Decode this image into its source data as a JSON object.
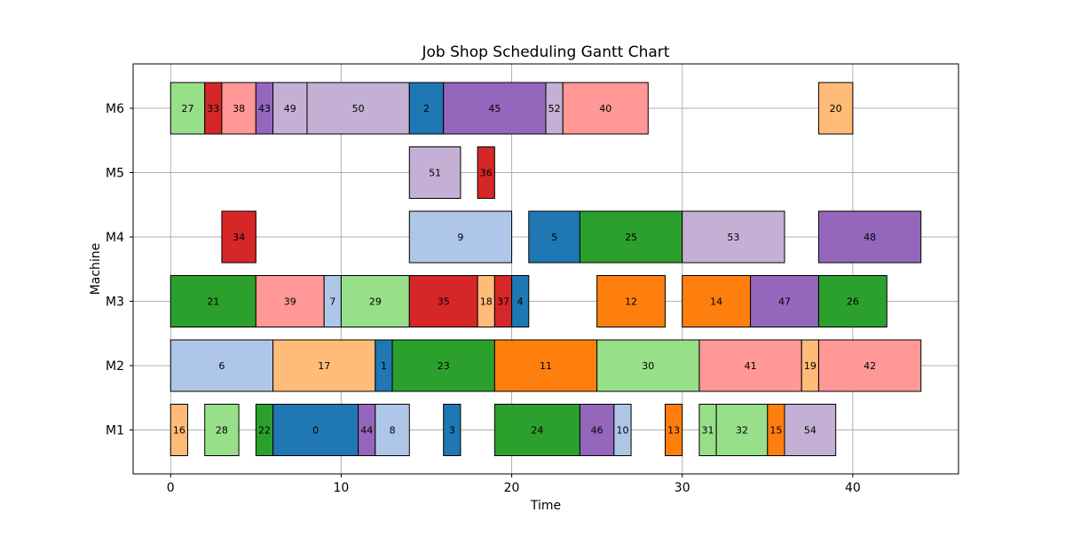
{
  "chart_data": {
    "type": "gantt",
    "title": "Job Shop Scheduling Gantt Chart",
    "xlabel": "Time",
    "ylabel": "Machine",
    "xlim": [
      -2.2,
      46.2
    ],
    "xticks": [
      0,
      10,
      20,
      30,
      40
    ],
    "machines": [
      "M1",
      "M2",
      "M3",
      "M4",
      "M5",
      "M6"
    ],
    "grid": true,
    "palette": {
      "blue": "#1f77b4",
      "light-blue": "#aec7e8",
      "orange": "#ff7f0e",
      "light-orange": "#ffbb78",
      "green": "#2ca02c",
      "light-green": "#98df8a",
      "red": "#d62728",
      "light-red": "#ff9896",
      "purple": "#9467bd",
      "light-purple": "#c5b0d5"
    },
    "tasks": [
      {
        "machine": "M1",
        "job": "16",
        "start": 0,
        "end": 1,
        "color": "#ffbb78"
      },
      {
        "machine": "M1",
        "job": "28",
        "start": 2,
        "end": 4,
        "color": "#98df8a"
      },
      {
        "machine": "M1",
        "job": "22",
        "start": 5,
        "end": 6,
        "color": "#2ca02c"
      },
      {
        "machine": "M1",
        "job": "0",
        "start": 6,
        "end": 11,
        "color": "#1f77b4"
      },
      {
        "machine": "M1",
        "job": "44",
        "start": 11,
        "end": 12,
        "color": "#9467bd"
      },
      {
        "machine": "M1",
        "job": "8",
        "start": 12,
        "end": 14,
        "color": "#aec7e8"
      },
      {
        "machine": "M1",
        "job": "3",
        "start": 16,
        "end": 17,
        "color": "#1f77b4"
      },
      {
        "machine": "M1",
        "job": "24",
        "start": 19,
        "end": 24,
        "color": "#2ca02c"
      },
      {
        "machine": "M1",
        "job": "46",
        "start": 24,
        "end": 26,
        "color": "#9467bd"
      },
      {
        "machine": "M1",
        "job": "10",
        "start": 26,
        "end": 27,
        "color": "#aec7e8"
      },
      {
        "machine": "M1",
        "job": "13",
        "start": 29,
        "end": 30,
        "color": "#ff7f0e"
      },
      {
        "machine": "M1",
        "job": "31",
        "start": 31,
        "end": 32,
        "color": "#98df8a"
      },
      {
        "machine": "M1",
        "job": "32",
        "start": 32,
        "end": 35,
        "color": "#98df8a"
      },
      {
        "machine": "M1",
        "job": "15",
        "start": 35,
        "end": 36,
        "color": "#ff7f0e"
      },
      {
        "machine": "M1",
        "job": "54",
        "start": 36,
        "end": 39,
        "color": "#c5b0d5"
      },
      {
        "machine": "M2",
        "job": "6",
        "start": 0,
        "end": 6,
        "color": "#aec7e8"
      },
      {
        "machine": "M2",
        "job": "17",
        "start": 6,
        "end": 12,
        "color": "#ffbb78"
      },
      {
        "machine": "M2",
        "job": "1",
        "start": 12,
        "end": 13,
        "color": "#1f77b4"
      },
      {
        "machine": "M2",
        "job": "23",
        "start": 13,
        "end": 19,
        "color": "#2ca02c"
      },
      {
        "machine": "M2",
        "job": "11",
        "start": 19,
        "end": 25,
        "color": "#ff7f0e"
      },
      {
        "machine": "M2",
        "job": "30",
        "start": 25,
        "end": 31,
        "color": "#98df8a"
      },
      {
        "machine": "M2",
        "job": "41",
        "start": 31,
        "end": 37,
        "color": "#ff9896"
      },
      {
        "machine": "M2",
        "job": "19",
        "start": 37,
        "end": 38,
        "color": "#ffbb78"
      },
      {
        "machine": "M2",
        "job": "42",
        "start": 38,
        "end": 44,
        "color": "#ff9896"
      },
      {
        "machine": "M3",
        "job": "21",
        "start": 0,
        "end": 5,
        "color": "#2ca02c"
      },
      {
        "machine": "M3",
        "job": "39",
        "start": 5,
        "end": 9,
        "color": "#ff9896"
      },
      {
        "machine": "M3",
        "job": "7",
        "start": 9,
        "end": 10,
        "color": "#aec7e8"
      },
      {
        "machine": "M3",
        "job": "29",
        "start": 10,
        "end": 14,
        "color": "#98df8a"
      },
      {
        "machine": "M3",
        "job": "35",
        "start": 14,
        "end": 18,
        "color": "#d62728"
      },
      {
        "machine": "M3",
        "job": "18",
        "start": 18,
        "end": 19,
        "color": "#ffbb78"
      },
      {
        "machine": "M3",
        "job": "37",
        "start": 19,
        "end": 20,
        "color": "#d62728"
      },
      {
        "machine": "M3",
        "job": "4",
        "start": 20,
        "end": 21,
        "color": "#1f77b4"
      },
      {
        "machine": "M3",
        "job": "12",
        "start": 25,
        "end": 29,
        "color": "#ff7f0e"
      },
      {
        "machine": "M3",
        "job": "14",
        "start": 30,
        "end": 34,
        "color": "#ff7f0e"
      },
      {
        "machine": "M3",
        "job": "47",
        "start": 34,
        "end": 38,
        "color": "#9467bd"
      },
      {
        "machine": "M3",
        "job": "26",
        "start": 38,
        "end": 42,
        "color": "#2ca02c"
      },
      {
        "machine": "M4",
        "job": "34",
        "start": 3,
        "end": 5,
        "color": "#d62728"
      },
      {
        "machine": "M4",
        "job": "9",
        "start": 14,
        "end": 20,
        "color": "#aec7e8"
      },
      {
        "machine": "M4",
        "job": "5",
        "start": 21,
        "end": 24,
        "color": "#1f77b4"
      },
      {
        "machine": "M4",
        "job": "25",
        "start": 24,
        "end": 30,
        "color": "#2ca02c"
      },
      {
        "machine": "M4",
        "job": "53",
        "start": 30,
        "end": 36,
        "color": "#c5b0d5"
      },
      {
        "machine": "M4",
        "job": "48",
        "start": 38,
        "end": 44,
        "color": "#9467bd"
      },
      {
        "machine": "M5",
        "job": "51",
        "start": 14,
        "end": 17,
        "color": "#c5b0d5"
      },
      {
        "machine": "M5",
        "job": "36",
        "start": 18,
        "end": 19,
        "color": "#d62728"
      },
      {
        "machine": "M6",
        "job": "27",
        "start": 0,
        "end": 2,
        "color": "#98df8a"
      },
      {
        "machine": "M6",
        "job": "33",
        "start": 2,
        "end": 3,
        "color": "#d62728"
      },
      {
        "machine": "M6",
        "job": "38",
        "start": 3,
        "end": 5,
        "color": "#ff9896"
      },
      {
        "machine": "M6",
        "job": "43",
        "start": 5,
        "end": 6,
        "color": "#9467bd"
      },
      {
        "machine": "M6",
        "job": "49",
        "start": 6,
        "end": 8,
        "color": "#c5b0d5"
      },
      {
        "machine": "M6",
        "job": "50",
        "start": 8,
        "end": 14,
        "color": "#c5b0d5"
      },
      {
        "machine": "M6",
        "job": "2",
        "start": 14,
        "end": 16,
        "color": "#1f77b4"
      },
      {
        "machine": "M6",
        "job": "45",
        "start": 16,
        "end": 22,
        "color": "#9467bd"
      },
      {
        "machine": "M6",
        "job": "52",
        "start": 22,
        "end": 23,
        "color": "#c5b0d5"
      },
      {
        "machine": "M6",
        "job": "40",
        "start": 23,
        "end": 28,
        "color": "#ff9896"
      },
      {
        "machine": "M6",
        "job": "20",
        "start": 38,
        "end": 40,
        "color": "#ffbb78"
      }
    ]
  }
}
